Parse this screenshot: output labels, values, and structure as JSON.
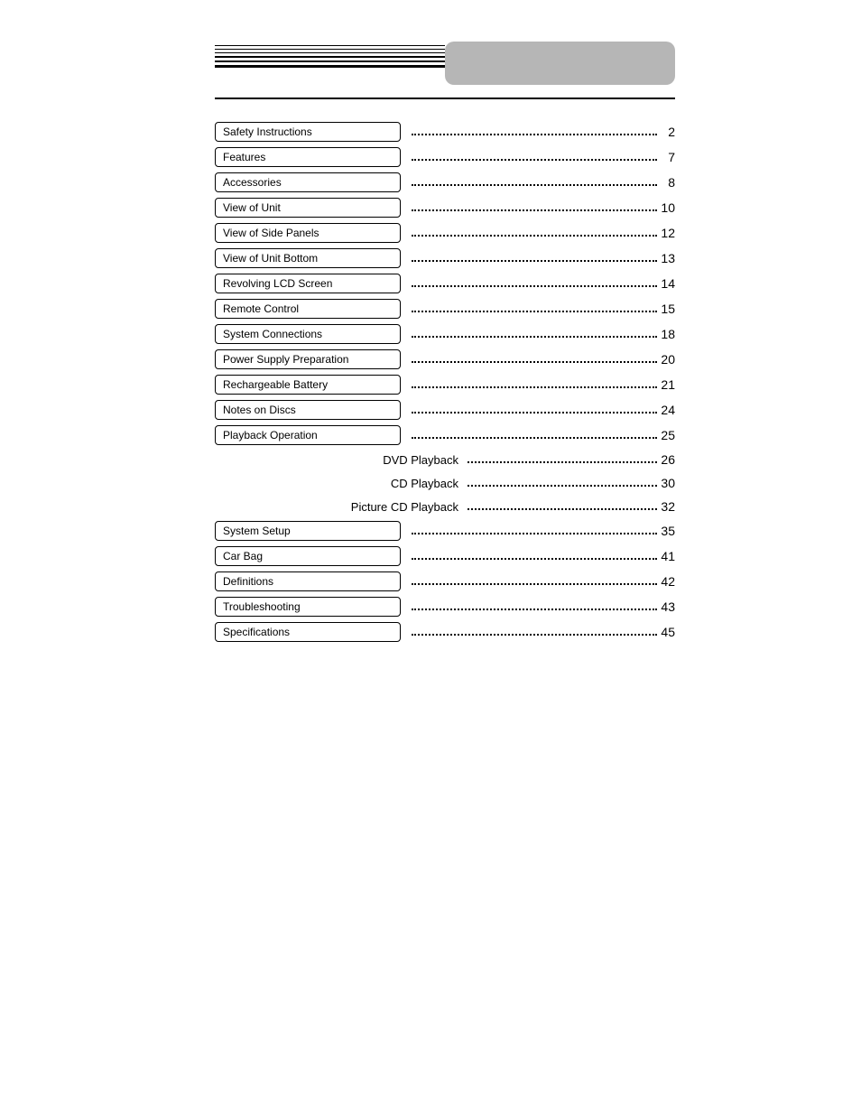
{
  "header": {
    "rule_widths": [
      1,
      1.4,
      1.8,
      2.2,
      2.6,
      3
    ],
    "rule_gap": 3,
    "tab_color": "#b6b6b6"
  },
  "toc": {
    "entries": [
      {
        "type": "box",
        "label": "Safety Instructions",
        "page": "2"
      },
      {
        "type": "box",
        "label": "Features",
        "page": "7"
      },
      {
        "type": "box",
        "label": "Accessories",
        "page": "8"
      },
      {
        "type": "box",
        "label": "View of Unit",
        "page": "10"
      },
      {
        "type": "box",
        "label": "View of Side Panels",
        "page": "12"
      },
      {
        "type": "box",
        "label": "View of Unit Bottom",
        "page": "13"
      },
      {
        "type": "box",
        "label": "Revolving LCD Screen",
        "page": "14"
      },
      {
        "type": "box",
        "label": "Remote Control",
        "page": "15"
      },
      {
        "type": "box",
        "label": "System Connections",
        "page": "18"
      },
      {
        "type": "box",
        "label": "Power Supply Preparation",
        "page": "20"
      },
      {
        "type": "box",
        "label": "Rechargeable Battery",
        "page": "21"
      },
      {
        "type": "box",
        "label": "Notes on Discs",
        "page": "24"
      },
      {
        "type": "box",
        "label": "Playback Operation",
        "page": "25"
      },
      {
        "type": "sub",
        "label": "DVD Playback",
        "page": "26"
      },
      {
        "type": "sub",
        "label": "CD Playback",
        "page": "30"
      },
      {
        "type": "sub",
        "label": "Picture CD Playback",
        "page": "32"
      },
      {
        "type": "box",
        "label": "System Setup",
        "page": "35"
      },
      {
        "type": "box",
        "label": "Car Bag",
        "page": "41"
      },
      {
        "type": "box",
        "label": "Definitions",
        "page": "42"
      },
      {
        "type": "box",
        "label": "Troubleshooting",
        "page": "43"
      },
      {
        "type": "box",
        "label": "Specifications",
        "page": "45"
      }
    ]
  }
}
